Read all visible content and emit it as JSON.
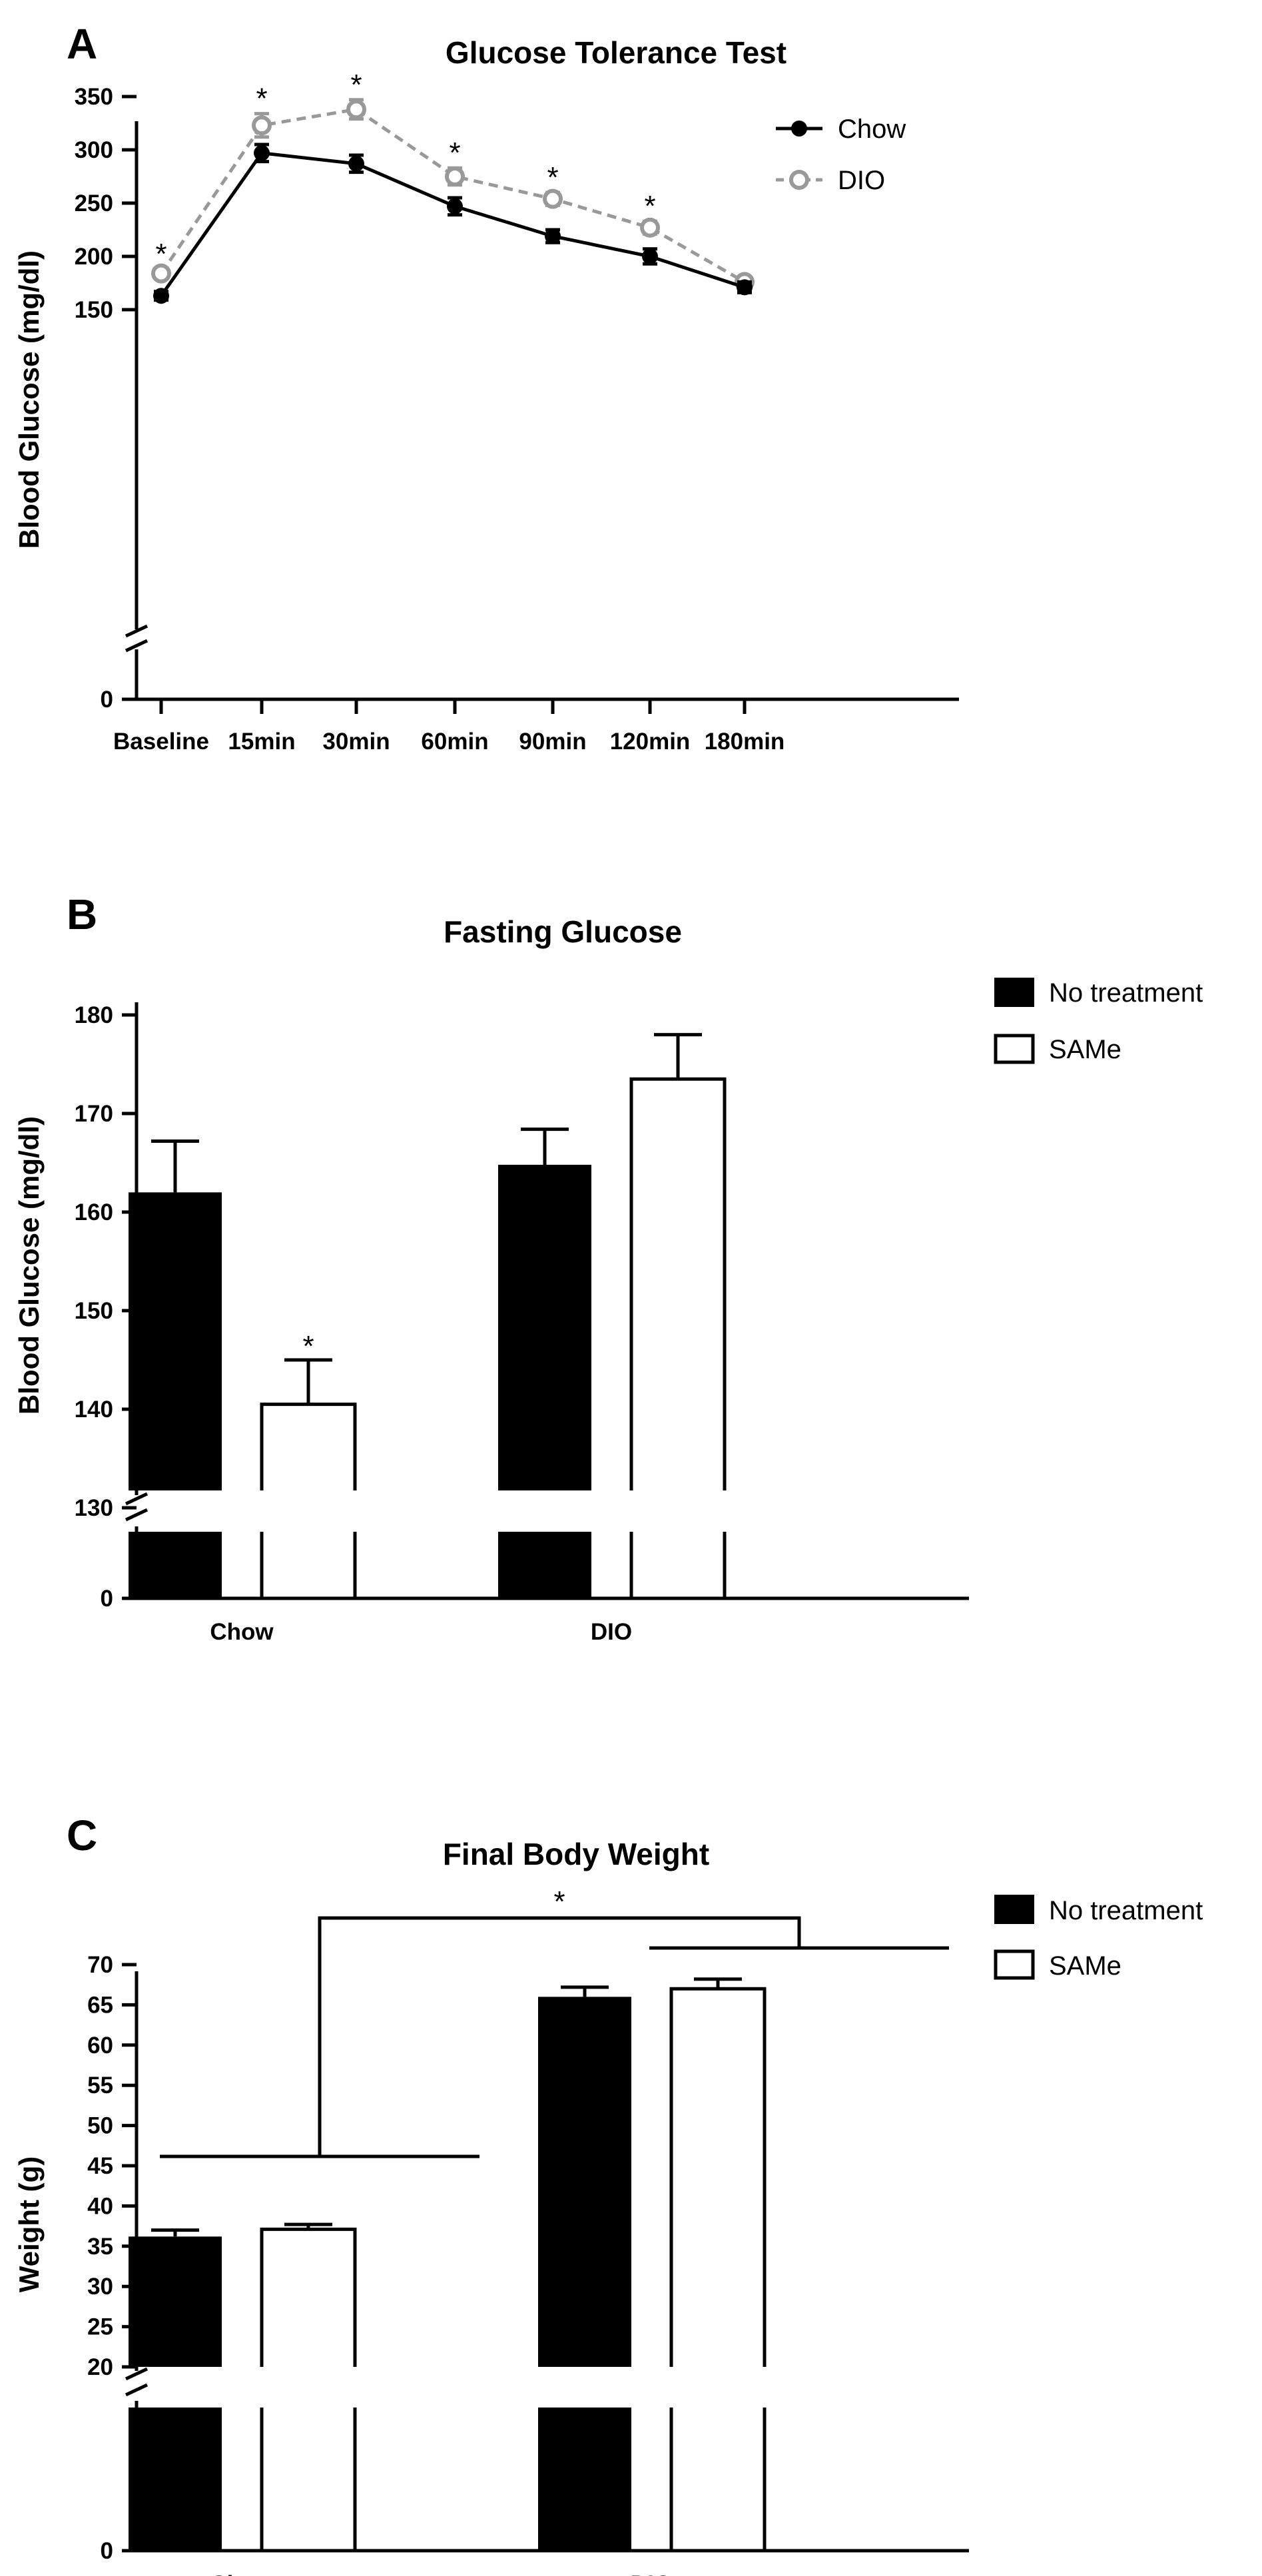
{
  "chart_data": [
    {
      "panel": "A",
      "type": "line",
      "title": "Glucose Tolerance Test",
      "ylabel": "Blood Glucose (mg/dl)",
      "xlabel": "",
      "categories": [
        "Baseline",
        "15min",
        "30min",
        "60min",
        "90min",
        "120min",
        "180min"
      ],
      "y_ticks": [
        150,
        200,
        250,
        300,
        350
      ],
      "y_break_tick": 0,
      "ylim": [
        150,
        350
      ],
      "series": [
        {
          "name": "Chow",
          "color": "#000000",
          "dashed": false,
          "values": [
            163,
            297,
            287,
            247,
            219,
            200,
            171
          ],
          "errors": [
            4,
            8,
            8,
            8,
            6,
            7,
            5
          ]
        },
        {
          "name": "DIO",
          "color": "#999999",
          "dashed": true,
          "values": [
            184,
            323,
            338,
            275,
            254,
            227,
            176
          ],
          "errors": [
            4,
            11,
            9,
            8,
            6,
            6,
            3
          ]
        }
      ],
      "annotations": [
        {
          "text": "*",
          "category": "Baseline"
        },
        {
          "text": "*",
          "category": "15min"
        },
        {
          "text": "*",
          "category": "30min"
        },
        {
          "text": "*",
          "category": "60min"
        },
        {
          "text": "*",
          "category": "90min"
        },
        {
          "text": "*",
          "category": "120min"
        }
      ]
    },
    {
      "panel": "B",
      "type": "bar",
      "title": "Fasting Glucose",
      "ylabel": "Blood Glucose (mg/dl)",
      "xlabel": "",
      "categories": [
        "Chow",
        "DIO"
      ],
      "y_ticks": [
        130,
        140,
        150,
        160,
        170,
        180
      ],
      "y_break_tick": 0,
      "ylim": [
        130,
        180
      ],
      "series": [
        {
          "name": "No treatment",
          "fill": "#000000",
          "values": [
            162,
            164.8
          ],
          "errors": [
            5.2,
            3.6
          ]
        },
        {
          "name": "SAMe",
          "fill": "#ffffff",
          "values": [
            140.5,
            173.5
          ],
          "errors": [
            4.5,
            4.5
          ]
        }
      ],
      "annotations": [
        {
          "text": "*",
          "category": "Chow",
          "series": "SAMe"
        }
      ]
    },
    {
      "panel": "C",
      "type": "bar",
      "title": "Final Body Weight",
      "ylabel": "Weight (g)",
      "xlabel": "",
      "categories": [
        "Chow",
        "DIO"
      ],
      "y_ticks": [
        20,
        25,
        30,
        35,
        40,
        45,
        50,
        55,
        60,
        65,
        70
      ],
      "y_break_tick": 0,
      "ylim": [
        20,
        70
      ],
      "series": [
        {
          "name": "No treatment",
          "fill": "#000000",
          "values": [
            36.2,
            66
          ],
          "errors": [
            0.8,
            1.2
          ]
        },
        {
          "name": "SAMe",
          "fill": "#ffffff",
          "values": [
            37.1,
            67
          ],
          "errors": [
            0.6,
            1.2
          ]
        }
      ],
      "annotations": [
        {
          "text": "*",
          "between": [
            "Chow",
            "DIO"
          ]
        }
      ]
    }
  ]
}
